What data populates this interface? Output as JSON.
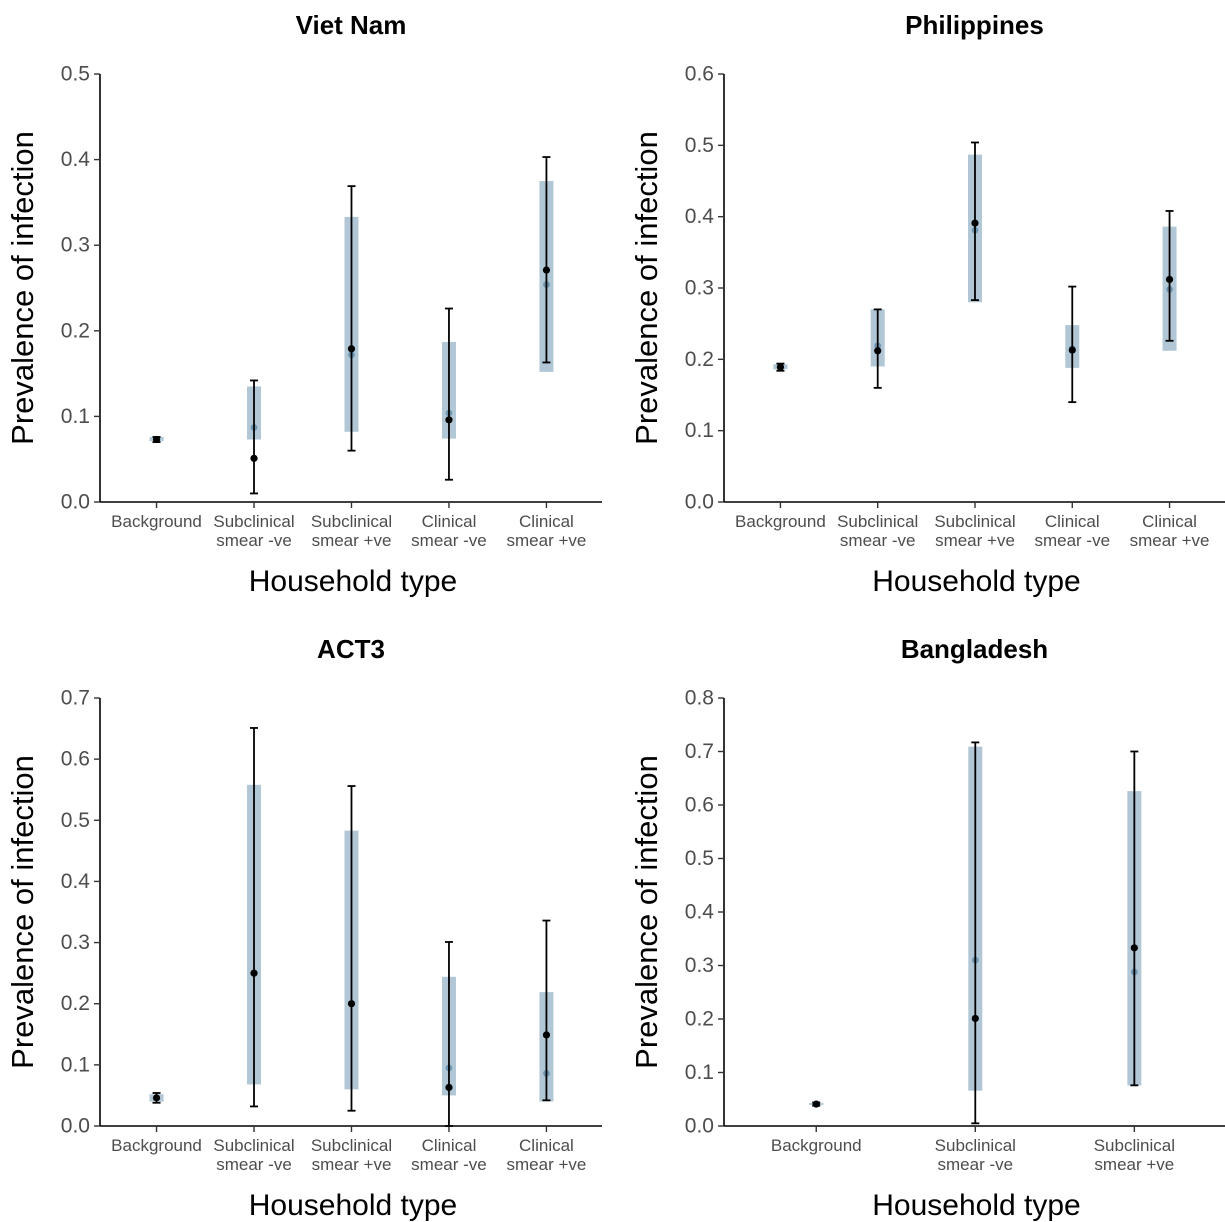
{
  "chart_data": [
    {
      "type": "pointrange",
      "title": "Viet Nam",
      "xlabel": "Household type",
      "ylabel": "Prevalence of infection",
      "categories": [
        "Background",
        "Subclinical\nsmear -ve",
        "Subclinical\nsmear +ve",
        "Clinical\nsmear -ve",
        "Clinical\nsmear +ve"
      ],
      "ylim": [
        0,
        0.5
      ],
      "yticks": [
        "0.0",
        "0.1",
        "0.2",
        "0.3",
        "0.4",
        "0.5"
      ],
      "series": [
        {
          "name": "",
          "style": "band",
          "color": "#a9c1d2",
          "values": [
            0.073,
            0.087,
            0.172,
            0.104,
            0.254
          ],
          "lower": [
            0.071,
            0.073,
            0.082,
            0.074,
            0.152
          ],
          "upper": [
            0.076,
            0.135,
            0.333,
            0.187,
            0.375
          ]
        },
        {
          "name": "",
          "style": "errorbar",
          "color": "#000000",
          "values": [
            0.073,
            0.051,
            0.179,
            0.096,
            0.271
          ],
          "lower": [
            0.07,
            0.01,
            0.06,
            0.026,
            0.163
          ],
          "upper": [
            0.076,
            0.142,
            0.369,
            0.226,
            0.403
          ]
        }
      ]
    },
    {
      "type": "pointrange",
      "title": "Philippines",
      "xlabel": "Household type",
      "ylabel": "Prevalence of infection",
      "categories": [
        "Background",
        "Subclinical\nsmear -ve",
        "Subclinical\nsmear +ve",
        "Clinical\nsmear -ve",
        "Clinical\nsmear +ve"
      ],
      "ylim": [
        0,
        0.6
      ],
      "yticks": [
        "0.0",
        "0.1",
        "0.2",
        "0.3",
        "0.4",
        "0.5",
        "0.6"
      ],
      "series": [
        {
          "name": "",
          "style": "band",
          "color": "#a9c1d2",
          "values": [
            0.189,
            0.219,
            0.381,
            0.215,
            0.298
          ],
          "lower": [
            0.186,
            0.19,
            0.28,
            0.188,
            0.212
          ],
          "upper": [
            0.193,
            0.27,
            0.487,
            0.248,
            0.386
          ]
        },
        {
          "name": "",
          "style": "errorbar",
          "color": "#000000",
          "values": [
            0.189,
            0.212,
            0.391,
            0.213,
            0.312
          ],
          "lower": [
            0.184,
            0.16,
            0.283,
            0.14,
            0.226
          ],
          "upper": [
            0.194,
            0.27,
            0.504,
            0.302,
            0.408
          ]
        }
      ]
    },
    {
      "type": "pointrange",
      "title": "ACT3",
      "xlabel": "Household type",
      "ylabel": "Prevalence of infection",
      "categories": [
        "Background",
        "Subclinical\nsmear -ve",
        "Subclinical\nsmear +ve",
        "Clinical\nsmear -ve",
        "Clinical\nsmear +ve"
      ],
      "ylim": [
        0,
        0.7
      ],
      "yticks": [
        "0.0",
        "0.1",
        "0.2",
        "0.3",
        "0.4",
        "0.5",
        "0.6",
        "0.7"
      ],
      "series": [
        {
          "name": "",
          "style": "band",
          "color": "#a9c1d2",
          "values": [
            0.046,
            0.25,
            0.2,
            0.095,
            0.086
          ],
          "lower": [
            0.04,
            0.068,
            0.06,
            0.05,
            0.04
          ],
          "upper": [
            0.052,
            0.558,
            0.483,
            0.244,
            0.219
          ]
        },
        {
          "name": "",
          "style": "errorbar",
          "color": "#000000",
          "values": [
            0.046,
            0.25,
            0.2,
            0.063,
            0.149
          ],
          "lower": [
            0.038,
            0.032,
            0.025,
            0.0,
            0.042
          ],
          "upper": [
            0.054,
            0.651,
            0.556,
            0.301,
            0.336
          ]
        }
      ]
    },
    {
      "type": "pointrange",
      "title": "Bangladesh",
      "xlabel": "Household type",
      "ylabel": "Prevalence of infection",
      "categories": [
        "Background",
        "Subclinical\nsmear -ve",
        "Subclinical\nsmear +ve"
      ],
      "ylim": [
        0,
        0.8
      ],
      "yticks": [
        "0.0",
        "0.1",
        "0.2",
        "0.3",
        "0.4",
        "0.5",
        "0.6",
        "0.7",
        "0.8"
      ],
      "series": [
        {
          "name": "",
          "style": "band",
          "color": "#a9c1d2",
          "values": [
            0.041,
            0.31,
            0.288
          ],
          "lower": [
            0.039,
            0.066,
            0.076
          ],
          "upper": [
            0.043,
            0.709,
            0.626
          ]
        },
        {
          "name": "",
          "style": "errorbar",
          "color": "#000000",
          "values": [
            0.041,
            0.201,
            0.333
          ],
          "lower": [
            0.038,
            0.005,
            0.076
          ],
          "upper": [
            0.044,
            0.717,
            0.7
          ]
        }
      ]
    }
  ]
}
